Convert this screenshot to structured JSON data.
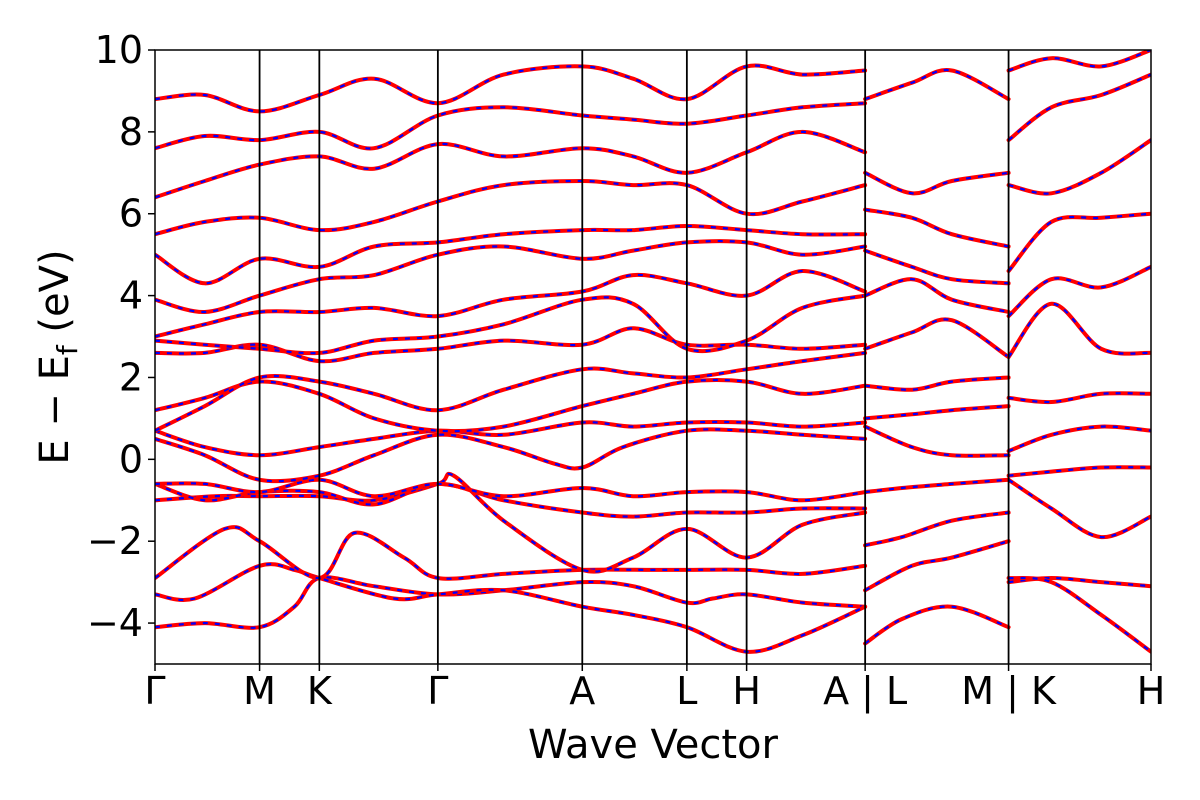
{
  "chart_data": {
    "type": "line",
    "title": "",
    "xlabel": "Wave Vector",
    "ylabel": "E − E_f (eV)",
    "ylabel_main": "E − E",
    "ylabel_sub": "f",
    "ylabel_unit": " (eV)",
    "ylim": [
      -5,
      10
    ],
    "yticks": [
      10,
      8,
      6,
      4,
      2,
      0,
      -2,
      -4
    ],
    "ytick_labels": [
      "10",
      "8",
      "6",
      "4",
      "2",
      "0",
      "−2",
      "−4"
    ],
    "xlim": [
      0,
      1
    ],
    "kpoints": [
      {
        "label": "Γ",
        "x": 0.0
      },
      {
        "label": "M",
        "x": 0.105
      },
      {
        "label": "K",
        "x": 0.165
      },
      {
        "label": "Γ",
        "x": 0.284
      },
      {
        "label": "A",
        "x": 0.429
      },
      {
        "label": "L",
        "x": 0.534
      },
      {
        "label": "H",
        "x": 0.594
      },
      {
        "label": "A | L",
        "x": 0.713
      },
      {
        "label": "M | K",
        "x": 0.857
      },
      {
        "label": "H",
        "x": 1.0
      }
    ],
    "grid": false,
    "legend": "none",
    "colors": {
      "dft": "#ff0000",
      "model": "#0000ff"
    },
    "bands": [
      {
        "x": [
          0,
          0.05,
          0.105,
          0.14,
          0.165,
          0.22,
          0.284,
          0.35,
          0.429,
          0.48,
          0.534,
          0.56,
          0.594,
          0.65,
          0.713
        ],
        "y": [
          -4.1,
          -4.0,
          -4.1,
          -3.6,
          -2.9,
          -3.1,
          -3.3,
          -3.2,
          -3.0,
          -3.1,
          -3.5,
          -3.4,
          -3.3,
          -3.5,
          -3.6
        ]
      },
      {
        "x": [
          0,
          0.04,
          0.105,
          0.14,
          0.165,
          0.24,
          0.284,
          0.35,
          0.429,
          0.48,
          0.534,
          0.594,
          0.65,
          0.713
        ],
        "y": [
          -3.3,
          -3.4,
          -2.6,
          -2.7,
          -2.9,
          -3.4,
          -3.3,
          -3.2,
          -3.6,
          -3.8,
          -4.1,
          -4.7,
          -4.3,
          -3.6
        ]
      },
      {
        "x": [
          0,
          0.07,
          0.105,
          0.165,
          0.2,
          0.25,
          0.284,
          0.35,
          0.429,
          0.5,
          0.534,
          0.594,
          0.65,
          0.713
        ],
        "y": [
          -2.9,
          -1.7,
          -2.0,
          -2.9,
          -1.8,
          -2.4,
          -2.9,
          -2.8,
          -2.7,
          -2.7,
          -2.7,
          -2.7,
          -2.8,
          -2.6
        ]
      },
      {
        "x": [
          0,
          0.06,
          0.105,
          0.165,
          0.22,
          0.284,
          0.3,
          0.35,
          0.429,
          0.48,
          0.534,
          0.594,
          0.65,
          0.713
        ],
        "y": [
          -1.0,
          -0.9,
          -0.9,
          -0.9,
          -1.0,
          -0.6,
          -0.4,
          -1.5,
          -2.7,
          -2.4,
          -1.7,
          -2.4,
          -1.6,
          -1.3
        ]
      },
      {
        "x": [
          0,
          0.05,
          0.105,
          0.165,
          0.22,
          0.284,
          0.35,
          0.429,
          0.48,
          0.534,
          0.594,
          0.65,
          0.713
        ],
        "y": [
          -0.6,
          -1.0,
          -0.8,
          -0.8,
          -1.1,
          -0.6,
          -1.0,
          -1.3,
          -1.4,
          -1.3,
          -1.3,
          -1.2,
          -1.2
        ]
      },
      {
        "x": [
          0,
          0.05,
          0.105,
          0.165,
          0.22,
          0.284,
          0.35,
          0.429,
          0.48,
          0.534,
          0.594,
          0.65,
          0.713
        ],
        "y": [
          -0.6,
          -0.6,
          -0.8,
          -0.5,
          -0.9,
          -0.6,
          -0.9,
          -0.7,
          -0.9,
          -0.8,
          -0.8,
          -1.0,
          -0.8
        ]
      },
      {
        "x": [
          0,
          0.05,
          0.105,
          0.165,
          0.22,
          0.284,
          0.35,
          0.4,
          0.429,
          0.47,
          0.534,
          0.594,
          0.65,
          0.713
        ],
        "y": [
          0.5,
          0.1,
          -0.5,
          -0.4,
          0.1,
          0.6,
          0.3,
          -0.1,
          -0.2,
          0.3,
          0.7,
          0.7,
          0.6,
          0.5
        ]
      },
      {
        "x": [
          0,
          0.05,
          0.105,
          0.165,
          0.22,
          0.284,
          0.35,
          0.429,
          0.48,
          0.534,
          0.594,
          0.65,
          0.713
        ],
        "y": [
          0.7,
          0.3,
          0.1,
          0.3,
          0.5,
          0.7,
          0.6,
          0.9,
          0.8,
          0.9,
          0.9,
          0.8,
          0.9
        ]
      },
      {
        "x": [
          0,
          0.05,
          0.105,
          0.165,
          0.22,
          0.284,
          0.35,
          0.429,
          0.48,
          0.534,
          0.594,
          0.65,
          0.713
        ],
        "y": [
          1.2,
          1.5,
          1.9,
          1.6,
          1.0,
          0.7,
          0.8,
          1.3,
          1.6,
          1.9,
          1.9,
          1.6,
          1.8
        ]
      },
      {
        "x": [
          0,
          0.05,
          0.105,
          0.165,
          0.22,
          0.284,
          0.35,
          0.429,
          0.48,
          0.534,
          0.594,
          0.65,
          0.713
        ],
        "y": [
          0.7,
          1.3,
          2.0,
          1.9,
          1.6,
          1.2,
          1.7,
          2.2,
          2.1,
          2.0,
          2.2,
          2.4,
          2.6
        ]
      },
      {
        "x": [
          0,
          0.05,
          0.105,
          0.165,
          0.22,
          0.284,
          0.35,
          0.429,
          0.48,
          0.534,
          0.594,
          0.65,
          0.713
        ],
        "y": [
          2.6,
          2.6,
          2.8,
          2.4,
          2.6,
          2.7,
          2.9,
          2.8,
          3.2,
          2.8,
          2.8,
          2.7,
          2.8
        ]
      },
      {
        "x": [
          0,
          0.05,
          0.105,
          0.165,
          0.22,
          0.284,
          0.35,
          0.429,
          0.48,
          0.534,
          0.594,
          0.65,
          0.713
        ],
        "y": [
          2.9,
          2.8,
          2.7,
          2.6,
          2.9,
          3.0,
          3.3,
          3.9,
          3.8,
          2.7,
          2.9,
          3.7,
          4.0
        ]
      },
      {
        "x": [
          0,
          0.05,
          0.105,
          0.165,
          0.22,
          0.284,
          0.35,
          0.429,
          0.48,
          0.534,
          0.594,
          0.65,
          0.713
        ],
        "y": [
          3.0,
          3.3,
          3.6,
          3.6,
          3.7,
          3.5,
          3.9,
          4.1,
          4.5,
          4.3,
          4.0,
          4.6,
          4.1
        ]
      },
      {
        "x": [
          0,
          0.05,
          0.105,
          0.165,
          0.22,
          0.284,
          0.35,
          0.429,
          0.48,
          0.534,
          0.594,
          0.65,
          0.713
        ],
        "y": [
          3.9,
          3.6,
          4.0,
          4.4,
          4.5,
          5.0,
          5.2,
          4.9,
          5.1,
          5.3,
          5.3,
          5.0,
          5.2
        ]
      },
      {
        "x": [
          0,
          0.05,
          0.105,
          0.165,
          0.22,
          0.284,
          0.35,
          0.429,
          0.48,
          0.534,
          0.594,
          0.65,
          0.713
        ],
        "y": [
          5.0,
          4.3,
          4.9,
          4.7,
          5.2,
          5.3,
          5.5,
          5.6,
          5.6,
          5.7,
          5.6,
          5.5,
          5.5
        ]
      },
      {
        "x": [
          0,
          0.05,
          0.105,
          0.165,
          0.22,
          0.284,
          0.35,
          0.429,
          0.48,
          0.534,
          0.594,
          0.65,
          0.713
        ],
        "y": [
          5.5,
          5.8,
          5.9,
          5.6,
          5.8,
          6.3,
          6.7,
          6.8,
          6.7,
          6.7,
          6.0,
          6.3,
          6.7
        ]
      },
      {
        "x": [
          0,
          0.05,
          0.105,
          0.165,
          0.22,
          0.284,
          0.35,
          0.429,
          0.48,
          0.534,
          0.594,
          0.65,
          0.713
        ],
        "y": [
          6.4,
          6.8,
          7.2,
          7.4,
          7.1,
          7.7,
          7.4,
          7.6,
          7.4,
          7.0,
          7.5,
          8.0,
          7.5
        ]
      },
      {
        "x": [
          0,
          0.05,
          0.105,
          0.165,
          0.22,
          0.284,
          0.35,
          0.429,
          0.48,
          0.534,
          0.594,
          0.65,
          0.713
        ],
        "y": [
          7.6,
          7.9,
          7.8,
          8.0,
          7.6,
          8.4,
          8.6,
          8.4,
          8.3,
          8.2,
          8.4,
          8.6,
          8.7
        ]
      },
      {
        "x": [
          0,
          0.05,
          0.105,
          0.165,
          0.22,
          0.284,
          0.35,
          0.429,
          0.48,
          0.534,
          0.594,
          0.65,
          0.713
        ],
        "y": [
          8.8,
          8.9,
          8.5,
          8.9,
          9.3,
          8.7,
          9.4,
          9.6,
          9.3,
          8.8,
          9.6,
          9.4,
          9.5
        ]
      },
      {
        "x": [
          0.713,
          0.75,
          0.8,
          0.857
        ],
        "y": [
          -4.5,
          -3.9,
          -3.6,
          -4.1
        ]
      },
      {
        "x": [
          0.713,
          0.76,
          0.8,
          0.857
        ],
        "y": [
          -3.2,
          -2.6,
          -2.4,
          -2.0
        ]
      },
      {
        "x": [
          0.713,
          0.75,
          0.8,
          0.857
        ],
        "y": [
          -2.1,
          -1.9,
          -1.5,
          -1.3
        ]
      },
      {
        "x": [
          0.713,
          0.75,
          0.8,
          0.857
        ],
        "y": [
          -0.8,
          -0.7,
          -0.6,
          -0.5
        ]
      },
      {
        "x": [
          0.713,
          0.76,
          0.8,
          0.857
        ],
        "y": [
          0.8,
          0.3,
          0.1,
          0.1
        ]
      },
      {
        "x": [
          0.713,
          0.76,
          0.8,
          0.857
        ],
        "y": [
          1.0,
          1.1,
          1.2,
          1.3
        ]
      },
      {
        "x": [
          0.713,
          0.76,
          0.8,
          0.857
        ],
        "y": [
          1.8,
          1.7,
          1.9,
          2.0
        ]
      },
      {
        "x": [
          0.713,
          0.76,
          0.8,
          0.857
        ],
        "y": [
          2.7,
          3.1,
          3.4,
          2.5
        ]
      },
      {
        "x": [
          0.713,
          0.76,
          0.8,
          0.857
        ],
        "y": [
          4.0,
          4.4,
          3.9,
          3.6
        ]
      },
      {
        "x": [
          0.713,
          0.76,
          0.8,
          0.857
        ],
        "y": [
          5.1,
          4.7,
          4.4,
          4.3
        ]
      },
      {
        "x": [
          0.713,
          0.76,
          0.8,
          0.857
        ],
        "y": [
          6.1,
          5.9,
          5.5,
          5.2
        ]
      },
      {
        "x": [
          0.713,
          0.76,
          0.8,
          0.857
        ],
        "y": [
          7.0,
          6.5,
          6.8,
          7.0
        ]
      },
      {
        "x": [
          0.713,
          0.76,
          0.8,
          0.857
        ],
        "y": [
          8.8,
          9.2,
          9.5,
          8.8
        ]
      },
      {
        "x": [
          0.857,
          0.9,
          0.95,
          1.0
        ],
        "y": [
          -3.0,
          -2.9,
          -3.0,
          -3.1
        ]
      },
      {
        "x": [
          0.857,
          0.9,
          0.95,
          1.0
        ],
        "y": [
          -2.9,
          -3.0,
          -3.8,
          -4.7
        ]
      },
      {
        "x": [
          0.857,
          0.9,
          0.95,
          1.0
        ],
        "y": [
          -0.5,
          -1.2,
          -1.9,
          -1.4
        ]
      },
      {
        "x": [
          0.857,
          0.9,
          0.95,
          1.0
        ],
        "y": [
          -0.4,
          -0.3,
          -0.2,
          -0.2
        ]
      },
      {
        "x": [
          0.857,
          0.9,
          0.95,
          1.0
        ],
        "y": [
          0.2,
          0.6,
          0.8,
          0.7
        ]
      },
      {
        "x": [
          0.857,
          0.9,
          0.95,
          1.0
        ],
        "y": [
          1.5,
          1.4,
          1.6,
          1.6
        ]
      },
      {
        "x": [
          0.857,
          0.9,
          0.95,
          1.0
        ],
        "y": [
          2.5,
          3.8,
          2.7,
          2.6
        ]
      },
      {
        "x": [
          0.857,
          0.9,
          0.95,
          1.0
        ],
        "y": [
          3.5,
          4.4,
          4.2,
          4.7
        ]
      },
      {
        "x": [
          0.857,
          0.9,
          0.95,
          1.0
        ],
        "y": [
          4.6,
          5.8,
          5.9,
          6.0
        ]
      },
      {
        "x": [
          0.857,
          0.9,
          0.95,
          1.0
        ],
        "y": [
          6.7,
          6.5,
          7.0,
          7.8
        ]
      },
      {
        "x": [
          0.857,
          0.9,
          0.95,
          1.0
        ],
        "y": [
          7.8,
          8.6,
          8.9,
          9.4
        ]
      },
      {
        "x": [
          0.857,
          0.9,
          0.95,
          1.0
        ],
        "y": [
          9.5,
          9.8,
          9.6,
          10.0
        ]
      }
    ]
  }
}
